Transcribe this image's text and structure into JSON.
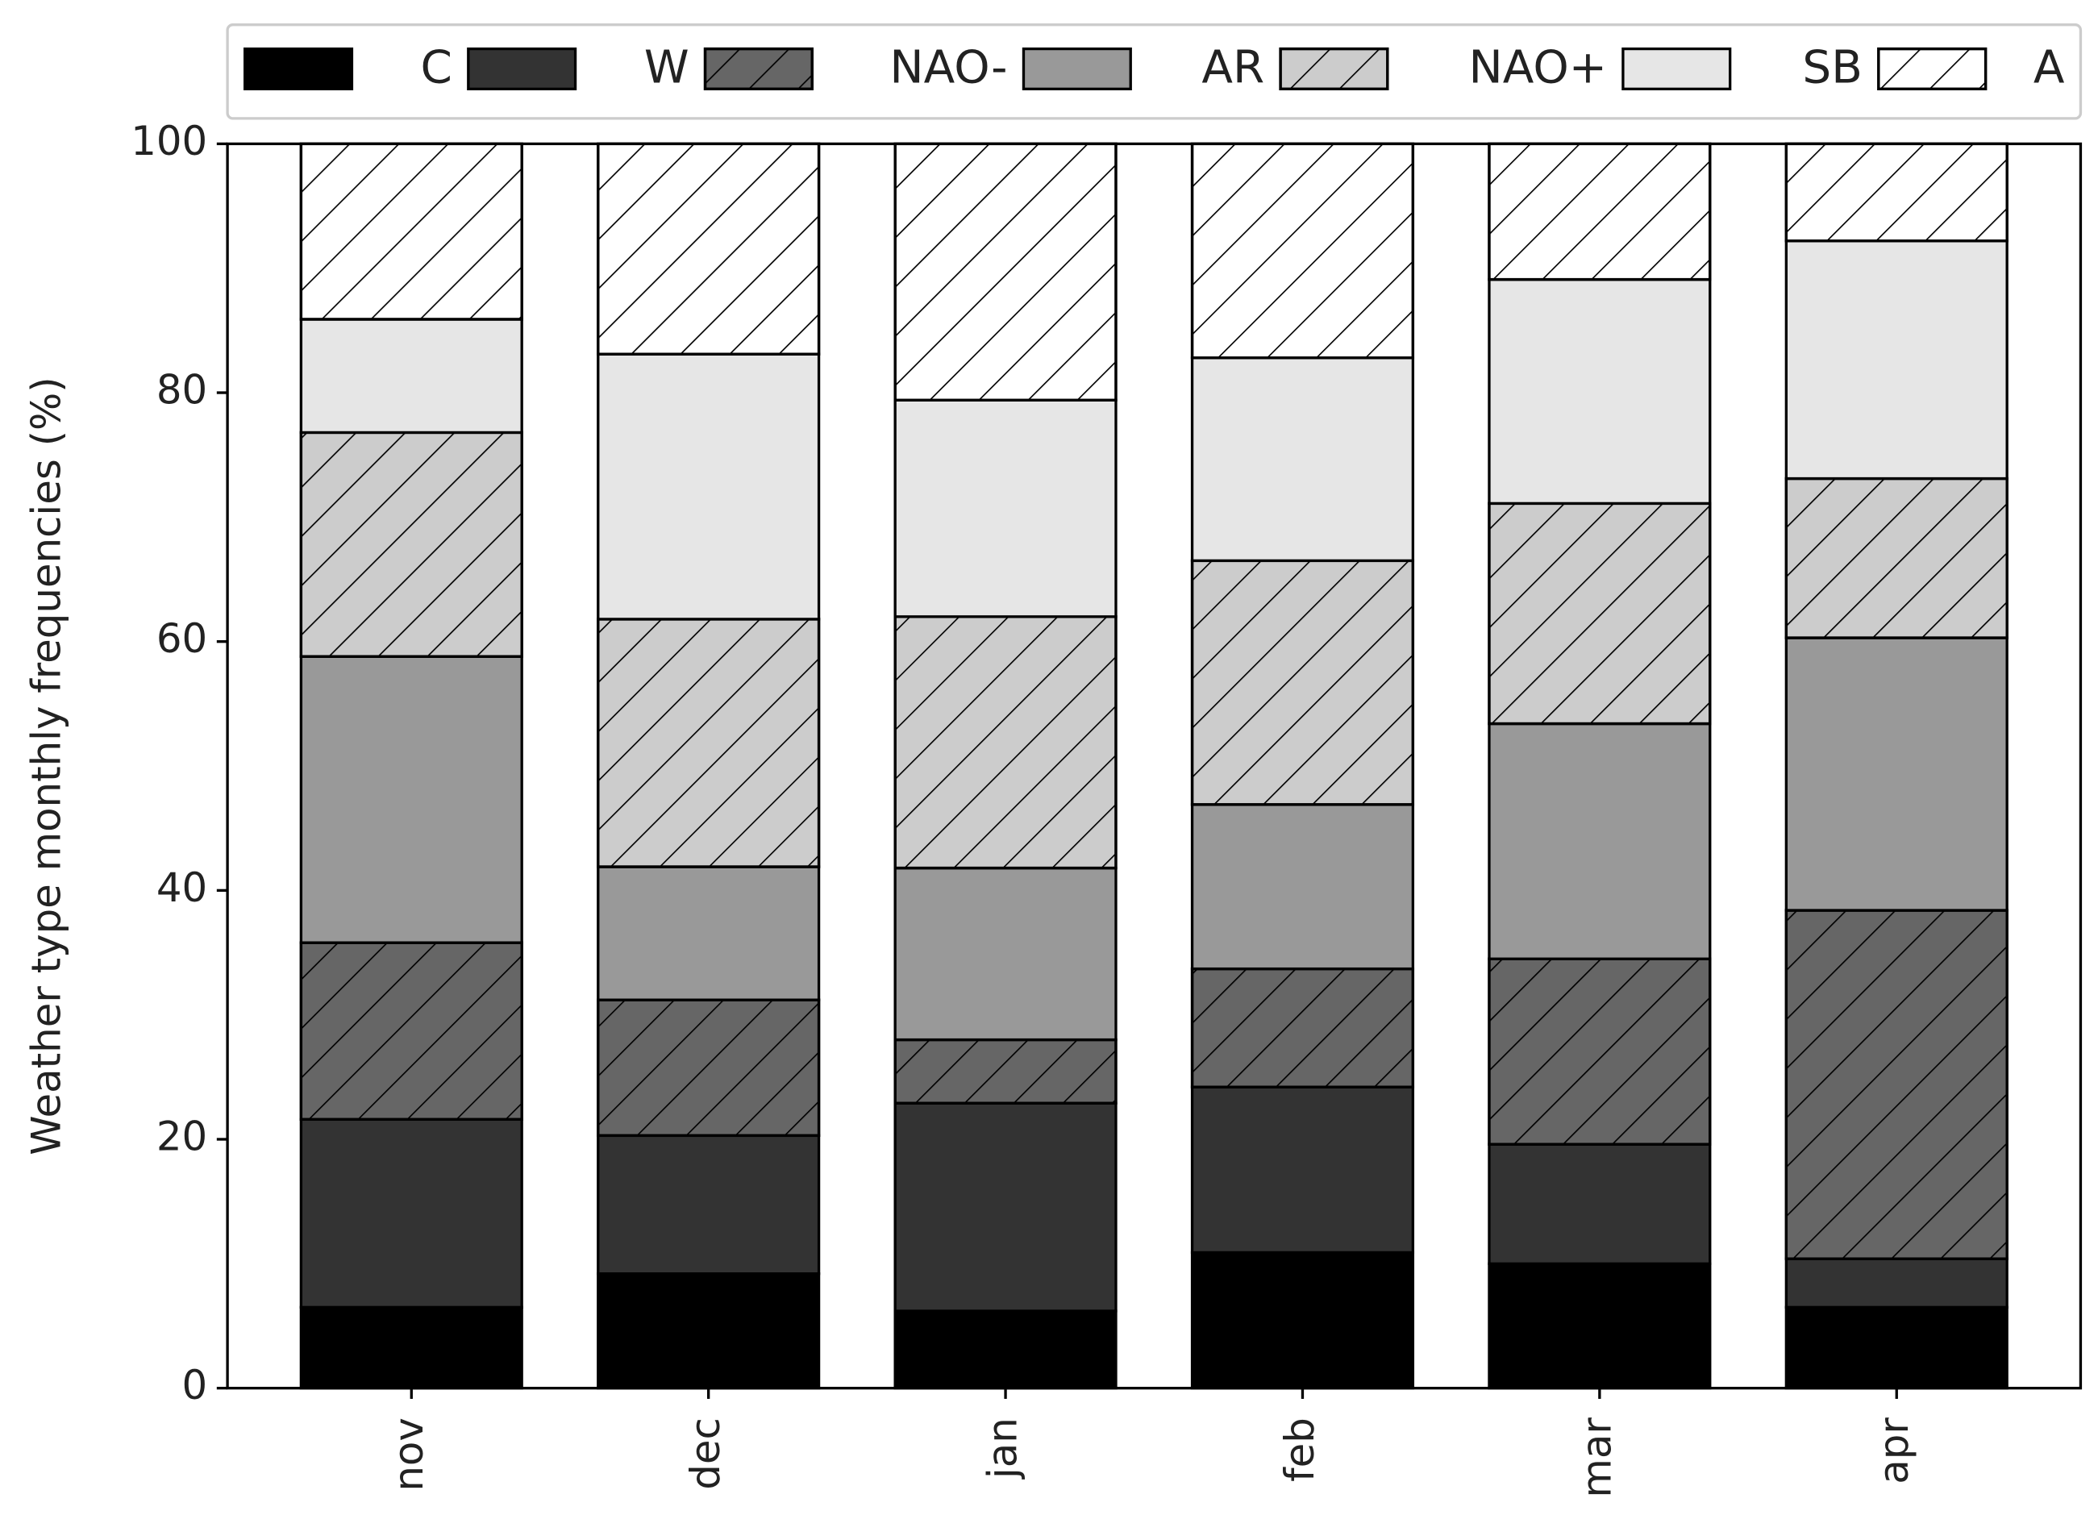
{
  "chart_data": {
    "type": "bar",
    "stacked": true,
    "title": "",
    "xlabel": "",
    "ylabel": "Weather type monthly frequencies (%)",
    "ylim": [
      0,
      100
    ],
    "yticks": [
      "0",
      "20",
      "40",
      "60",
      "80",
      "100"
    ],
    "grid": false,
    "legend_position": "top",
    "categories": [
      "nov",
      "dec",
      "jan",
      "feb",
      "mar",
      "apr"
    ],
    "series": [
      {
        "name": "C",
        "color": "#000000",
        "hatch": false,
        "values": [
          6.5,
          9.2,
          6.2,
          10.9,
          10.0,
          6.5
        ]
      },
      {
        "name": "W",
        "color": "#333333",
        "hatch": false,
        "values": [
          15.1,
          11.1,
          16.7,
          13.3,
          9.6,
          3.9
        ]
      },
      {
        "name": "NAO-",
        "color": "#666666",
        "hatch": true,
        "values": [
          14.2,
          10.9,
          5.1,
          9.5,
          14.9,
          28.0
        ]
      },
      {
        "name": "AR",
        "color": "#999999",
        "hatch": false,
        "values": [
          23.0,
          10.7,
          13.8,
          13.2,
          18.9,
          21.9
        ]
      },
      {
        "name": "NAO+",
        "color": "#cccccc",
        "hatch": true,
        "values": [
          18.0,
          19.9,
          20.2,
          19.6,
          17.7,
          12.8
        ]
      },
      {
        "name": "SB",
        "color": "#e6e6e6",
        "hatch": false,
        "values": [
          9.1,
          21.3,
          17.4,
          16.3,
          18.0,
          19.1
        ]
      },
      {
        "name": "A",
        "color": "#ffffff",
        "hatch": true,
        "values": [
          14.1,
          16.9,
          20.6,
          17.2,
          10.9,
          7.8
        ]
      }
    ]
  }
}
